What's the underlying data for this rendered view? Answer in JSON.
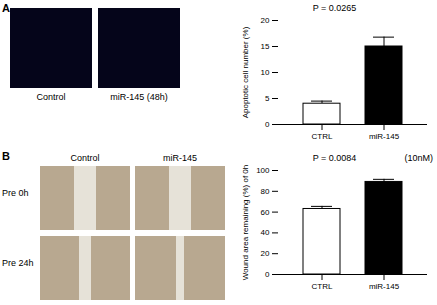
{
  "panels": {
    "A": {
      "label": "A",
      "images": [
        "Control",
        "miR-145 (48h)"
      ]
    },
    "B": {
      "label": "B",
      "columns": [
        "Control",
        "miR-145"
      ],
      "rows": [
        "Pre 0h",
        "Pre 24h"
      ]
    }
  },
  "chart_data": [
    {
      "type": "bar",
      "title": "P = 0.0265",
      "y_label": "Apoptotic cell number (%)",
      "categories": [
        "CTRL",
        "miR-145"
      ],
      "values": [
        4,
        15
      ],
      "errors": [
        0.5,
        1.8
      ],
      "colors": [
        "#ffffff",
        "#000000"
      ],
      "ylim": [
        0,
        20
      ],
      "yticks": [
        0,
        5,
        10,
        15,
        20
      ]
    },
    {
      "type": "bar",
      "title": "P = 0.0084",
      "subtitle": "(10nM)",
      "y_label": "Wound area remaining (%) of 0h",
      "categories": [
        "CTRL",
        "miR-145"
      ],
      "values": [
        63,
        89
      ],
      "errors": [
        2.5,
        2.5
      ],
      "colors": [
        "#ffffff",
        "#000000"
      ],
      "ylim": [
        0,
        100
      ],
      "yticks": [
        0,
        20,
        40,
        60,
        80,
        100
      ]
    }
  ]
}
